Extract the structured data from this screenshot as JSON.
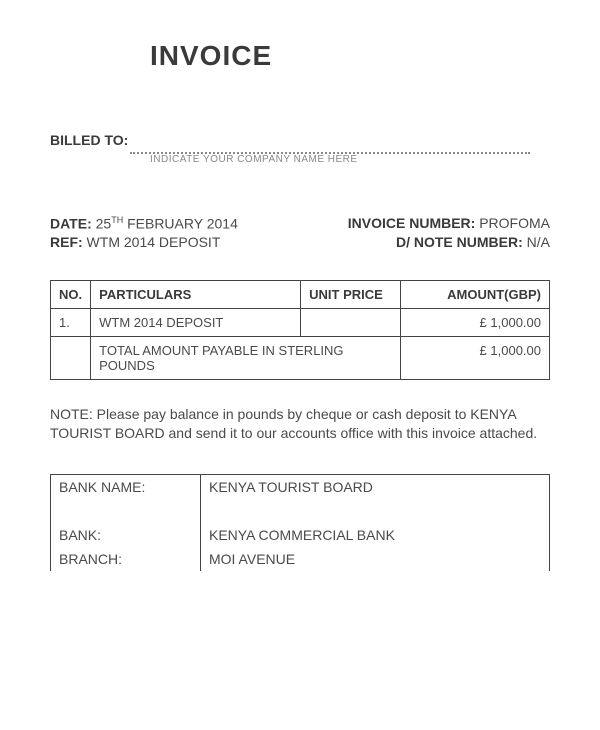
{
  "title": "INVOICE",
  "billed_to": {
    "label": "BILLED TO:",
    "hint": "INDICATE YOUR COMPANY NAME HERE"
  },
  "meta": {
    "date_label": "DATE:",
    "date_day": "25",
    "date_suffix": "TH",
    "date_rest": " FEBRUARY 2014",
    "ref_label": "REF:",
    "ref_value": " WTM 2014 DEPOSIT",
    "invoice_no_label": "INVOICE NUMBER:",
    "invoice_no_value": " PROFOMA",
    "dnote_label": "D/ NOTE NUMBER:",
    "dnote_value": " N/A"
  },
  "table": {
    "headers": {
      "no": "NO.",
      "particulars": "PARTICULARS",
      "unit_price": "UNIT PRICE",
      "amount": "AMOUNT(GBP)"
    },
    "row1": {
      "no": "1.",
      "particulars": "WTM 2014  DEPOSIT",
      "unit_price": "",
      "amount": "£ 1,000.00"
    },
    "total_row": {
      "label": "TOTAL AMOUNT PAYABLE IN STERLING POUNDS",
      "amount": "£ 1,000.00"
    }
  },
  "note": "NOTE: Please pay balance in pounds by cheque or cash deposit to KENYA TOURIST BOARD and send it to our accounts office with this invoice attached.",
  "bank": {
    "name_label": "BANK NAME:",
    "name_value": "KENYA TOURIST BOARD",
    "bank_label": "BANK:",
    "bank_value": "KENYA COMMERCIAL BANK",
    "branch_label": "BRANCH:",
    "branch_value": "MOI AVENUE"
  }
}
